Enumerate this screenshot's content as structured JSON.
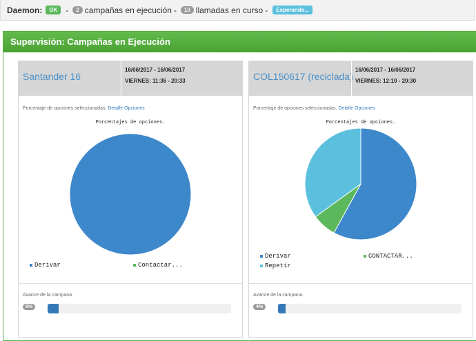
{
  "daemon": {
    "label": "Daemon:",
    "status": "OK",
    "campaigns_count": "2",
    "campaigns_text": "campañas en ejecución",
    "calls_count": "10",
    "calls_text": "llamadas en curso",
    "state": "Esperando..."
  },
  "panel": {
    "title": "Supervisión: Campañas en Ejecución"
  },
  "campaigns": [
    {
      "name": "Santander 16",
      "dates": "16/06/2017 - 16/06/2017",
      "schedule": "VIERNES: 11:36 - 20:33",
      "options_text": "Porcentaje de opciones seleccionadas.",
      "options_link": "Detalle Opciones",
      "avance_label": "Avance de la campana.",
      "progress_label": "6%",
      "progress_value": 6,
      "chart_data": {
        "type": "pie",
        "title": "Porcentajes de opciones.",
        "categories": [
          "Derivar",
          "Contactar..."
        ],
        "values": [
          100,
          0
        ],
        "colors": [
          "#3d87cb",
          "#5cb85c"
        ],
        "legend": "bottom"
      }
    },
    {
      "name": "COL150617 (reciclada)",
      "dates": "16/06/2017 - 16/06/2017",
      "schedule": "VIERNES: 12:10 - 20:30",
      "options_text": "Porcentaje de opciones seleccionadas.",
      "options_link": "Detalle Opciones",
      "avance_label": "Avance de la campana.",
      "progress_label": "4%",
      "progress_value": 4,
      "chart_data": {
        "type": "pie",
        "title": "Porcentajes de opciones.",
        "categories": [
          "Derivar",
          "CONTACTAR...",
          "Repetir"
        ],
        "values": [
          58,
          7,
          35
        ],
        "colors": [
          "#3d87cb",
          "#5cb85c",
          "#5bc0de"
        ],
        "legend": "bottom"
      }
    }
  ]
}
